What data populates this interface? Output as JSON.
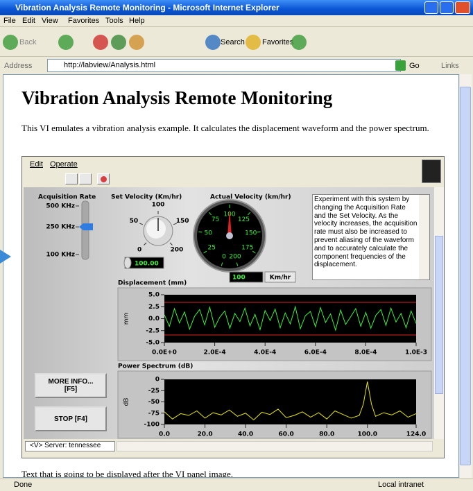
{
  "window": {
    "title": "Vibration Analysis Remote Monitoring - Microsoft Internet Explorer",
    "menu": [
      "File",
      "Edit",
      "View",
      "Favorites",
      "Tools",
      "Help"
    ],
    "toolbar": [
      "Back",
      "Search",
      "Favorites"
    ],
    "address_label": "Address",
    "url": "http://labview/Analysis.html",
    "go": "Go",
    "links": "Links"
  },
  "page": {
    "heading": "Vibration Analysis Remote Monitoring",
    "intro": "This VI emulates a vibration analysis example. It calculates the displacement waveform and the power spectrum.",
    "after_text": "Text that is going to be displayed after the VI panel image."
  },
  "vi": {
    "menu": [
      "Edit",
      "Operate"
    ],
    "acquisition_rate": {
      "label": "Acquisition Rate",
      "log_scale": true,
      "lim": [
        100,
        500
      ],
      "ticks": [
        {
          "value": 500,
          "label": "500 KHz"
        },
        {
          "value": 250,
          "label": "250 KHz"
        },
        {
          "value": 100,
          "label": "100 KHz"
        }
      ],
      "value": 250,
      "color": "#2f7de0"
    },
    "set_velocity": {
      "label": "Set Velocity (Km/hr)",
      "lim": [
        0,
        200
      ],
      "ticks": [
        0,
        50,
        100,
        150,
        200
      ],
      "value": 100,
      "value_label": "100.00"
    },
    "actual_velocity": {
      "label": "Actual Velocity (km/hr)",
      "lim": [
        0,
        200
      ],
      "ticks": [
        0,
        25,
        50,
        75,
        100,
        125,
        150,
        175,
        200
      ],
      "value": 100,
      "units": "Km/hr",
      "color": "#e02020"
    },
    "info_text": "Experiment with this system by changing the Acquisition Rate and the Set Velocity. As the velocity increases, the acquisition rate must also be increased to prevent aliasing of the waveform and to accurately calculate the component frequencies of the displacement.",
    "displacement": {
      "type": "line",
      "title": "Displacement (mm)",
      "y_label": "mm",
      "color": "#3cf03c",
      "limit_color": "#e02020",
      "limit_lines": [
        3.4,
        -3.4
      ],
      "xlim": [
        0,
        0.001
      ],
      "xticks": [
        {
          "value": 0,
          "label": "0.0E+0"
        },
        {
          "value": 0.0002,
          "label": "2.0E-4"
        },
        {
          "value": 0.0004,
          "label": "4.0E-4"
        },
        {
          "value": 0.0006,
          "label": "6.0E-4"
        },
        {
          "value": 0.0008,
          "label": "8.0E-4"
        },
        {
          "value": 0.001,
          "label": "1.0E-3"
        }
      ],
      "ylim": [
        -5,
        5
      ],
      "yticks": [
        {
          "value": 5,
          "label": "5.0"
        },
        {
          "value": 2.5,
          "label": "2.5"
        },
        {
          "value": 0,
          "label": "0.0"
        },
        {
          "value": -2.5,
          "label": "-2.5"
        },
        {
          "value": -5,
          "label": "-5.0"
        }
      ],
      "x": [
        0,
        2e-05,
        4e-05,
        6e-05,
        8e-05,
        0.0001,
        0.00012,
        0.00014,
        0.00016,
        0.00018,
        0.0002,
        0.00022,
        0.00024,
        0.00026,
        0.00028,
        0.0003,
        0.00032,
        0.00034,
        0.00036,
        0.00038,
        0.0004,
        0.00042,
        0.00044,
        0.00046,
        0.00048,
        0.0005,
        0.00052,
        0.00054,
        0.00056,
        0.00058,
        0.0006,
        0.00062,
        0.00064,
        0.00066,
        0.00068,
        0.0007,
        0.00072,
        0.00074,
        0.00076,
        0.00078,
        0.0008,
        0.00082,
        0.00084,
        0.00086,
        0.00088,
        0.0009,
        0.00092,
        0.00094,
        0.00096,
        0.00098,
        0.001
      ],
      "values": [
        0.8,
        -1.6,
        2.1,
        -0.9,
        1.4,
        -2.2,
        0.5,
        1.9,
        -1.3,
        2.4,
        -1.8,
        0.3,
        1.6,
        -2.0,
        1.1,
        -0.6,
        2.2,
        -1.5,
        0.9,
        -2.3,
        1.7,
        -0.4,
        2.0,
        -1.9,
        1.2,
        -1.1,
        2.5,
        -2.1,
        0.6,
        1.5,
        -1.7,
        2.3,
        -0.8,
        1.0,
        -2.4,
        1.8,
        -1.2,
        0.4,
        2.1,
        -1.6,
        1.3,
        -2.0,
        0.7,
        1.9,
        -1.4,
        2.2,
        -0.7,
        1.1,
        -1.9,
        1.6,
        -1.0
      ]
    },
    "power_spectrum": {
      "type": "line",
      "title": "Power Spectrum (dB)",
      "y_label": "dB",
      "color": "#e8e800",
      "xlim": [
        0,
        124
      ],
      "xticks": [
        {
          "value": 0,
          "label": "0.0"
        },
        {
          "value": 20,
          "label": "20.0"
        },
        {
          "value": 40,
          "label": "40.0"
        },
        {
          "value": 60,
          "label": "60.0"
        },
        {
          "value": 80,
          "label": "80.0"
        },
        {
          "value": 100,
          "label": "100.0"
        },
        {
          "value": 124,
          "label": "124.0"
        }
      ],
      "ylim": [
        -100,
        0
      ],
      "yticks": [
        0,
        -25,
        -50,
        -75,
        -100
      ],
      "x": [
        0,
        4,
        8,
        12,
        16,
        20,
        24,
        28,
        32,
        36,
        40,
        44,
        48,
        52,
        56,
        60,
        64,
        68,
        72,
        76,
        80,
        84,
        88,
        92,
        96,
        98,
        100,
        102,
        104,
        108,
        112,
        116,
        120,
        124
      ],
      "values": [
        -72,
        -88,
        -76,
        -80,
        -70,
        -86,
        -74,
        -79,
        -68,
        -82,
        -75,
        -90,
        -73,
        -78,
        -66,
        -85,
        -80,
        -72,
        -84,
        -74,
        -88,
        -70,
        -78,
        -86,
        -80,
        -55,
        -5,
        -55,
        -82,
        -74,
        -79,
        -70,
        -84,
        -76
      ]
    },
    "buttons": [
      [
        "MORE INFO...",
        "[F5]"
      ],
      [
        "STOP [F4]"
      ]
    ],
    "server": "<V> Server: tennessee"
  },
  "status": {
    "text": "Done",
    "zone": "Local intranet"
  }
}
